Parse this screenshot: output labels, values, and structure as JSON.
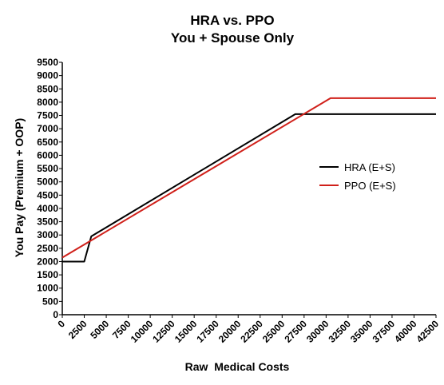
{
  "chart_data": {
    "type": "line",
    "title": "HRA vs. PPO",
    "subtitle": "You + Spouse Only",
    "xlabel": "Raw  Medical Costs",
    "ylabel": "You Pay (Premium + OOP)",
    "xlim": [
      0,
      42500
    ],
    "ylim": [
      0,
      9500
    ],
    "x_ticks": [
      0,
      2500,
      5000,
      7500,
      10000,
      12500,
      15000,
      17500,
      20000,
      22500,
      25000,
      27500,
      30000,
      32500,
      35000,
      37500,
      40000,
      42500
    ],
    "y_ticks": [
      0,
      500,
      1000,
      1500,
      2000,
      2500,
      3000,
      3500,
      4000,
      4500,
      5000,
      5500,
      6000,
      6500,
      7000,
      7500,
      8000,
      8500,
      9000,
      9500
    ],
    "legend_position": "right-middle",
    "grid": false,
    "series": [
      {
        "name": "HRA (E+S)",
        "color": "#000000",
        "points": [
          [
            0,
            2000
          ],
          [
            2500,
            2000
          ],
          [
            3300,
            2950
          ],
          [
            26500,
            7550
          ],
          [
            42500,
            7550
          ]
        ]
      },
      {
        "name": "PPO (E+S)",
        "color": "#d0201a",
        "points": [
          [
            0,
            2150
          ],
          [
            30500,
            8150
          ],
          [
            42500,
            8150
          ]
        ]
      }
    ]
  }
}
